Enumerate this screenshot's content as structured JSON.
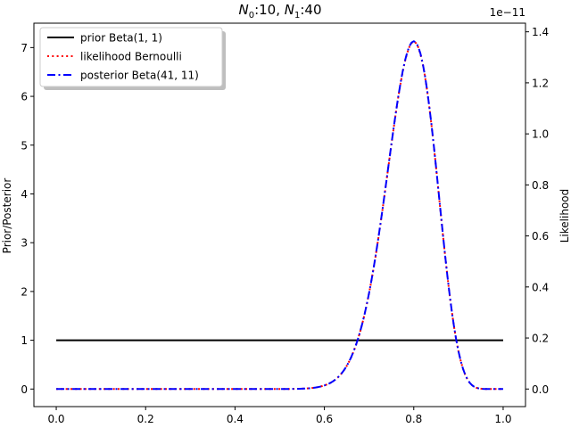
{
  "chart_data": {
    "type": "line",
    "title_parts": {
      "n0_sym": "N",
      "n0_sub": "0",
      "n0_val": ":10, ",
      "n1_sym": "N",
      "n1_sub": "1",
      "n1_val": ":40"
    },
    "xlim": [
      -0.05,
      1.05
    ],
    "ylim_left": [
      -0.36,
      7.5
    ],
    "ylim_right": [
      -0.0689,
      1.4338
    ],
    "right_axis_scale_label": "1e−11",
    "xticks": [
      0.0,
      0.2,
      0.4,
      0.6,
      0.8,
      1.0
    ],
    "xtick_labels": [
      "0.0",
      "0.2",
      "0.4",
      "0.6",
      "0.8",
      "1.0"
    ],
    "yticks_left": [
      0,
      1,
      2,
      3,
      4,
      5,
      6,
      7
    ],
    "ytick_labels_left": [
      "0",
      "1",
      "2",
      "3",
      "4",
      "5",
      "6",
      "7"
    ],
    "yticks_right": [
      0.0,
      0.2,
      0.4,
      0.6,
      0.8,
      1.0,
      1.2,
      1.4
    ],
    "ytick_labels_right": [
      "0.0",
      "0.2",
      "0.4",
      "0.6",
      "0.8",
      "1.0",
      "1.2",
      "1.4"
    ],
    "ylabel_left": "Prior/Posterior",
    "ylabel_right": "Likelihood",
    "legend_position": "upper-left",
    "series": [
      {
        "name": "prior Beta(1, 1)",
        "color": "#000000",
        "style": "solid",
        "axis": "left",
        "kind": "prior",
        "a": 1,
        "b": 1
      },
      {
        "name": "likelihood Bernoulli",
        "color": "#ff0000",
        "style": "dotted",
        "axis": "right",
        "kind": "likelihood",
        "heads": 40,
        "tails": 10
      },
      {
        "name": "posterior Beta(41, 11)",
        "color": "#0000ff",
        "style": "dashdot",
        "axis": "left",
        "kind": "posterior",
        "a": 41,
        "b": 11
      }
    ]
  }
}
